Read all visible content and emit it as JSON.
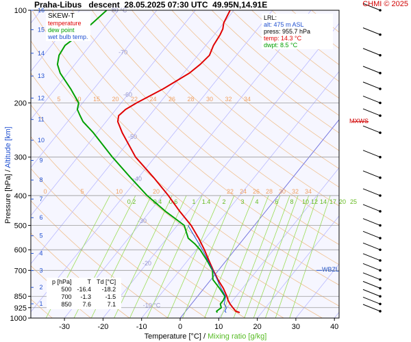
{
  "header": {
    "station": "Praha-Libus",
    "mode": "descent",
    "datetime": "28.05.2025 07:30 UTC",
    "location": "49.95N,14.91E",
    "credit": "CHMI © 2025"
  },
  "legend": {
    "title": "SKEW-T",
    "temperature": "temperature",
    "dewpoint": "dew point",
    "wetbulb": "wet bulb temp."
  },
  "lrl": {
    "title": "LRL:",
    "alt": "alt: 475 m ASL",
    "press": "press: 955.7 hPa",
    "temp": "temp: 14.3 °C",
    "dwpt": "dwpt: 8.5 °C"
  },
  "table": {
    "headers": [
      "p [hPa]",
      "T",
      "Td [°C]"
    ],
    "rows": [
      [
        "500",
        "-16.4",
        "-18.2"
      ],
      [
        "700",
        "-1.3",
        "-1.5"
      ],
      [
        "850",
        "7.6",
        "7.1"
      ]
    ]
  },
  "axes": {
    "xlabel_temp": "Temperature [°C]",
    "xlabel_sep": " / ",
    "xlabel_mix": "Mixing ratio [g/kg]",
    "ylabel_p": "Pressure [hPa]",
    "ylabel_sep": " / ",
    "ylabel_alt": "Altitude [km]"
  },
  "markers": {
    "mxws": "MXWS",
    "wbzl": "WBZL"
  },
  "colors": {
    "temperature": "#e00000",
    "dewpoint": "#00a000",
    "wetbulb": "#2050d0",
    "isobar": "#9a9a9a",
    "isotherm": "#b8b8ff",
    "dry_adiabat": "#f0c090",
    "mixing": "#99dd55",
    "background": "#f6f6ff"
  },
  "chart_data": {
    "type": "line",
    "x_ticks": [
      -30,
      -20,
      -10,
      0,
      10,
      20,
      30,
      40
    ],
    "p_ticks": [
      100,
      200,
      300,
      400,
      500,
      600,
      700,
      850,
      925,
      1000
    ],
    "alt_ticks": [
      "1",
      "2",
      "3",
      "4",
      "5",
      "6",
      "7",
      "8",
      "9",
      "10",
      "11",
      "12",
      "13",
      "14",
      "15",
      "16"
    ],
    "isotherm_labels": [
      {
        "t": -80,
        "label": "-80 °C"
      },
      {
        "t": -70,
        "label": "-70"
      },
      {
        "t": -60,
        "label": "-60"
      },
      {
        "t": -50,
        "label": "-50"
      },
      {
        "t": -40,
        "label": "-40"
      },
      {
        "t": -30,
        "label": "-30"
      },
      {
        "t": -20,
        "label": "-20"
      },
      {
        "t": -10,
        "label": "-10 °C"
      }
    ],
    "theta_labels_200": [
      "5",
      "10",
      "15",
      "20",
      "22",
      "24",
      "26",
      "28",
      "30",
      "32",
      "34"
    ],
    "theta_labels_400": [
      "0",
      "5",
      "10",
      "20",
      "22",
      "24",
      "26",
      "28",
      "30",
      "32",
      "34"
    ],
    "mixing_labels": [
      "0.2",
      "0.4",
      "0.6",
      "1",
      "1.4",
      "2",
      "3",
      "4",
      "6",
      "8",
      "10",
      "12",
      "14",
      "17",
      "20",
      "25"
    ],
    "series": [
      {
        "name": "temperature",
        "p": [
          960,
          950,
          925,
          900,
          875,
          850,
          800,
          750,
          700,
          650,
          600,
          575,
          550,
          500,
          450,
          400,
          350,
          300,
          250,
          230,
          220,
          210,
          200,
          180,
          160,
          150,
          140,
          130,
          120,
          115,
          110,
          100
        ],
        "t": [
          14.3,
          13.0,
          11.5,
          10.0,
          8.7,
          7.6,
          5.0,
          1.8,
          -1.3,
          -4.5,
          -7.9,
          -9.8,
          -11.8,
          -16.4,
          -22.3,
          -28.5,
          -36.0,
          -45.0,
          -53.5,
          -57.0,
          -58.0,
          -57.5,
          -56.0,
          -52.0,
          -48.5,
          -47.5,
          -47.0,
          -48.0,
          -48.5,
          -49.0,
          -50.0,
          -51.0
        ]
      },
      {
        "name": "dew point",
        "p": [
          960,
          950,
          925,
          900,
          875,
          850,
          800,
          750,
          700,
          650,
          600,
          575,
          550,
          500,
          450,
          400,
          350,
          300,
          250,
          230,
          220,
          210,
          200,
          180,
          160,
          150,
          140,
          130,
          120,
          110,
          100
        ],
        "t": [
          8.5,
          8.0,
          8.5,
          7.5,
          7.5,
          7.1,
          4.0,
          0.5,
          -1.5,
          -5.0,
          -9.0,
          -11.5,
          -14.5,
          -18.2,
          -26.0,
          -34.0,
          -42.0,
          -51.0,
          -61.0,
          -66.0,
          -68.0,
          -70.0,
          -71.0,
          -76.0,
          -82.0,
          -84.5,
          -86.0,
          -86.5,
          -85.0,
          -84.0,
          -83.0
        ]
      },
      {
        "name": "wet bulb temp.",
        "p": [
          960,
          950,
          925,
          900,
          850,
          800,
          700,
          600,
          500
        ],
        "t": [
          10.8,
          10.2,
          9.8,
          8.5,
          7.3,
          4.4,
          -1.4,
          -8.4,
          -17.2
        ]
      }
    ],
    "wind_barbs": [
      {
        "p": 100
      },
      {
        "p": 120
      },
      {
        "p": 140
      },
      {
        "p": 160
      },
      {
        "p": 180
      },
      {
        "p": 200
      },
      {
        "p": 220
      },
      {
        "p": 250
      },
      {
        "p": 300
      },
      {
        "p": 350
      },
      {
        "p": 400
      },
      {
        "p": 450
      },
      {
        "p": 500
      },
      {
        "p": 550
      },
      {
        "p": 600
      },
      {
        "p": 650
      },
      {
        "p": 700
      },
      {
        "p": 750
      },
      {
        "p": 800
      },
      {
        "p": 850
      },
      {
        "p": 900
      },
      {
        "p": 950
      }
    ],
    "mxws_p": 230,
    "wbzl_p": 700
  }
}
